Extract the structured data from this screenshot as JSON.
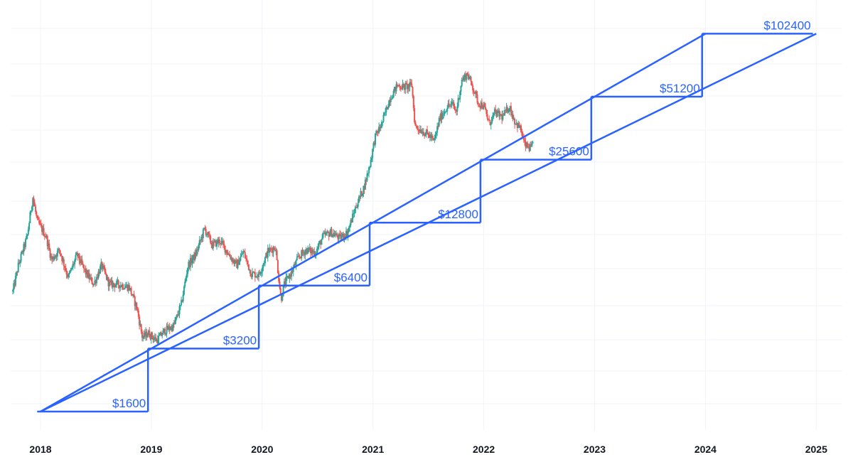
{
  "chart_data": {
    "type": "candlestick",
    "x_axis": {
      "ticks": [
        "2018",
        "2019",
        "2020",
        "2021",
        "2022",
        "2023",
        "2024",
        "2025"
      ],
      "range": [
        2017.75,
        2025.2
      ]
    },
    "y_axis": {
      "scale": "log",
      "tick_labels_visible": false
    },
    "grid": true,
    "colors": {
      "up": "#26a69a",
      "down": "#ef5350",
      "overlay": "#2962ff"
    },
    "price_path": [
      [
        2017.75,
        6000
      ],
      [
        2017.8,
        8000
      ],
      [
        2017.88,
        11000
      ],
      [
        2017.93,
        17000
      ],
      [
        2017.97,
        13000
      ],
      [
        2018.05,
        11000
      ],
      [
        2018.1,
        8500
      ],
      [
        2018.17,
        9500
      ],
      [
        2018.25,
        7000
      ],
      [
        2018.33,
        9000
      ],
      [
        2018.4,
        7500
      ],
      [
        2018.48,
        6500
      ],
      [
        2018.55,
        8000
      ],
      [
        2018.62,
        6500
      ],
      [
        2018.7,
        6500
      ],
      [
        2018.8,
        6300
      ],
      [
        2018.87,
        5000
      ],
      [
        2018.92,
        3600
      ],
      [
        2018.97,
        3800
      ],
      [
        2019.05,
        3500
      ],
      [
        2019.12,
        3900
      ],
      [
        2019.2,
        4100
      ],
      [
        2019.27,
        5200
      ],
      [
        2019.33,
        8000
      ],
      [
        2019.4,
        9000
      ],
      [
        2019.48,
        12000
      ],
      [
        2019.55,
        10000
      ],
      [
        2019.62,
        10500
      ],
      [
        2019.7,
        9000
      ],
      [
        2019.77,
        8000
      ],
      [
        2019.83,
        9300
      ],
      [
        2019.9,
        7300
      ],
      [
        2019.97,
        7200
      ],
      [
        2020.05,
        9300
      ],
      [
        2020.12,
        9800
      ],
      [
        2020.17,
        5500
      ],
      [
        2020.2,
        6500
      ],
      [
        2020.27,
        7500
      ],
      [
        2020.33,
        8800
      ],
      [
        2020.4,
        9500
      ],
      [
        2020.48,
        9200
      ],
      [
        2020.55,
        11000
      ],
      [
        2020.62,
        11500
      ],
      [
        2020.7,
        10800
      ],
      [
        2020.77,
        11500
      ],
      [
        2020.85,
        15500
      ],
      [
        2020.92,
        19000
      ],
      [
        2020.97,
        24000
      ],
      [
        2021.02,
        33000
      ],
      [
        2021.08,
        38000
      ],
      [
        2021.15,
        50000
      ],
      [
        2021.22,
        58000
      ],
      [
        2021.28,
        57000
      ],
      [
        2021.35,
        58000
      ],
      [
        2021.38,
        37000
      ],
      [
        2021.45,
        35000
      ],
      [
        2021.52,
        33000
      ],
      [
        2021.55,
        31000
      ],
      [
        2021.6,
        40000
      ],
      [
        2021.67,
        46000
      ],
      [
        2021.72,
        47000
      ],
      [
        2021.75,
        43000
      ],
      [
        2021.8,
        61000
      ],
      [
        2021.85,
        66000
      ],
      [
        2021.9,
        57000
      ],
      [
        2021.95,
        48000
      ],
      [
        2022.0,
        46000
      ],
      [
        2022.05,
        38000
      ],
      [
        2022.1,
        43000
      ],
      [
        2022.17,
        41000
      ],
      [
        2022.23,
        46000
      ],
      [
        2022.28,
        39000
      ],
      [
        2022.33,
        36000
      ],
      [
        2022.37,
        30000
      ],
      [
        2022.42,
        29000
      ],
      [
        2022.45,
        30000
      ]
    ],
    "overlay_lines": [
      {
        "from": [
          2018.0,
          1600
        ],
        "to": [
          2025.0,
          102400
        ]
      },
      {
        "from": [
          2018.0,
          1600
        ],
        "to": [
          2024.0,
          102400
        ]
      }
    ],
    "step_levels": [
      {
        "x": 2018.97,
        "value": 1600,
        "label": "$1600"
      },
      {
        "x": 2019.97,
        "value": 3200,
        "label": "$3200"
      },
      {
        "x": 2020.97,
        "value": 6400,
        "label": "$6400"
      },
      {
        "x": 2021.97,
        "value": 12800,
        "label": "$12800"
      },
      {
        "x": 2022.97,
        "value": 25600,
        "label": "$25600"
      },
      {
        "x": 2023.97,
        "value": 51200,
        "label": "$51200"
      },
      {
        "x": 2024.97,
        "value": 102400,
        "label": "$102400"
      }
    ]
  }
}
